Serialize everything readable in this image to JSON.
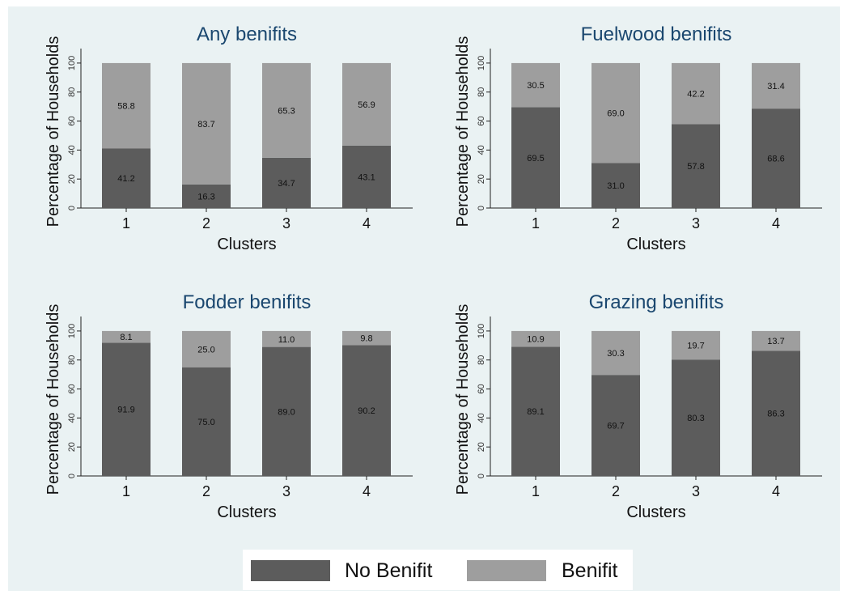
{
  "colors": {
    "background": "#eaf2f3",
    "title": "#1a476f",
    "no_benifit": "#5c5c5c",
    "benifit": "#9e9e9e",
    "axis": "#222222"
  },
  "legend": {
    "placement": "bottom-center",
    "items": [
      {
        "label": "No Benifit",
        "color": "#5c5c5c"
      },
      {
        "label": "Benifit",
        "color": "#9e9e9e"
      }
    ]
  },
  "chart_data": [
    {
      "type": "bar",
      "stacked": true,
      "title": "Any benifits",
      "xlabel": "Clusters",
      "ylabel": "Percentage of Households",
      "categories": [
        "1",
        "2",
        "3",
        "4"
      ],
      "yticks": [
        "0",
        "20",
        "40",
        "60",
        "80",
        "100"
      ],
      "ylim": [
        0,
        110
      ],
      "series": [
        {
          "name": "No Benifit",
          "values": [
            41.2,
            16.3,
            34.7,
            43.1
          ],
          "labels": [
            "41.2",
            "16.3",
            "34.7",
            "43.1"
          ]
        },
        {
          "name": "Benifit",
          "values": [
            58.8,
            83.7,
            65.3,
            56.9
          ],
          "labels": [
            "58.8",
            "83.7",
            "65.3",
            "56.9"
          ]
        }
      ]
    },
    {
      "type": "bar",
      "stacked": true,
      "title": "Fuelwood benifits",
      "xlabel": "Clusters",
      "ylabel": "Percentage of Households",
      "categories": [
        "1",
        "2",
        "3",
        "4"
      ],
      "yticks": [
        "0",
        "20",
        "40",
        "60",
        "80",
        "100"
      ],
      "ylim": [
        0,
        110
      ],
      "series": [
        {
          "name": "No Benifit",
          "values": [
            69.5,
            31.0,
            57.8,
            68.6
          ],
          "labels": [
            "69.5",
            "31.0",
            "57.8",
            "68.6"
          ]
        },
        {
          "name": "Benifit",
          "values": [
            30.5,
            69.0,
            42.2,
            31.4
          ],
          "labels": [
            "30.5",
            "69.0",
            "42.2",
            "31.4"
          ]
        }
      ]
    },
    {
      "type": "bar",
      "stacked": true,
      "title": "Fodder benifits",
      "xlabel": "Clusters",
      "ylabel": "Percentage of Households",
      "categories": [
        "1",
        "2",
        "3",
        "4"
      ],
      "yticks": [
        "0",
        "20",
        "40",
        "60",
        "80",
        "100"
      ],
      "ylim": [
        0,
        110
      ],
      "series": [
        {
          "name": "No Benifit",
          "values": [
            91.9,
            75.0,
            89.0,
            90.2
          ],
          "labels": [
            "91.9",
            "75.0",
            "89.0",
            "90.2"
          ]
        },
        {
          "name": "Benifit",
          "values": [
            8.1,
            25.0,
            11.0,
            9.8
          ],
          "labels": [
            "8.1",
            "25.0",
            "11.0",
            "9.8"
          ]
        }
      ]
    },
    {
      "type": "bar",
      "stacked": true,
      "title": "Grazing benifits",
      "xlabel": "Clusters",
      "ylabel": "Percentage of Households",
      "categories": [
        "1",
        "2",
        "3",
        "4"
      ],
      "yticks": [
        "0",
        "20",
        "40",
        "60",
        "80",
        "100"
      ],
      "ylim": [
        0,
        110
      ],
      "series": [
        {
          "name": "No Benifit",
          "values": [
            89.1,
            69.7,
            80.3,
            86.3
          ],
          "labels": [
            "89.1",
            "69.7",
            "80.3",
            "86.3"
          ]
        },
        {
          "name": "Benifit",
          "values": [
            10.9,
            30.3,
            19.7,
            13.7
          ],
          "labels": [
            "10.9",
            "30.3",
            "19.7",
            "13.7"
          ]
        }
      ]
    }
  ]
}
